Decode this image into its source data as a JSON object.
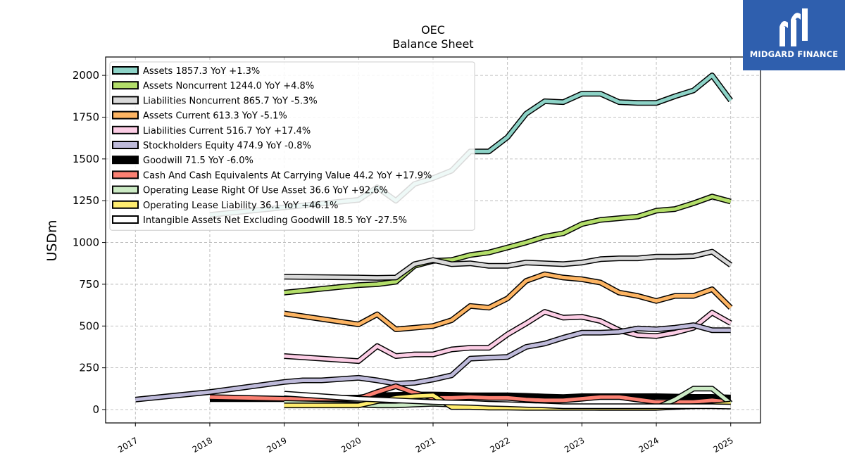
{
  "brand": {
    "name": "MIDGARD FINANCE",
    "bg_color": "#2f5fae"
  },
  "chart_data": {
    "type": "line",
    "title": "OEC",
    "subtitle": "Balance  Sheet",
    "xlabel": "",
    "ylabel": "USDm",
    "xlim": [
      2016.6,
      2025.4
    ],
    "ylim": [
      -80,
      2110
    ],
    "x_ticks": [
      "2017",
      "2018",
      "2019",
      "2020",
      "2021",
      "2022",
      "2023",
      "2024",
      "2025"
    ],
    "y_ticks": [
      "0",
      "250",
      "500",
      "750",
      "1000",
      "1250",
      "1500",
      "1750",
      "2000"
    ],
    "grid": true,
    "legend_position": "top-left",
    "series": [
      {
        "name": "Assets",
        "legend": "Assets  1857.3 YoY +1.3%",
        "color": "#8dd3c7",
        "points": [
          [
            2018,
            1165
          ],
          [
            2019,
            1210
          ],
          [
            2020,
            1255
          ],
          [
            2020.25,
            1330
          ],
          [
            2020.5,
            1250
          ],
          [
            2020.75,
            1350
          ],
          [
            2021,
            1385
          ],
          [
            2021.25,
            1430
          ],
          [
            2021.5,
            1545
          ],
          [
            2021.75,
            1545
          ],
          [
            2022,
            1630
          ],
          [
            2022.25,
            1770
          ],
          [
            2022.5,
            1845
          ],
          [
            2022.75,
            1840
          ],
          [
            2023,
            1890
          ],
          [
            2023.25,
            1890
          ],
          [
            2023.5,
            1840
          ],
          [
            2023.75,
            1835
          ],
          [
            2024,
            1835
          ],
          [
            2024.25,
            1875
          ],
          [
            2024.5,
            1910
          ],
          [
            2024.75,
            2000
          ],
          [
            2025,
            1850
          ]
        ]
      },
      {
        "name": "Assets Noncurrent",
        "legend": "Assets Noncurrent  1244.0 YoY +4.8%",
        "color": "#b3de69",
        "points": [
          [
            2019,
            700
          ],
          [
            2020,
            745
          ],
          [
            2020.25,
            750
          ],
          [
            2020.5,
            765
          ],
          [
            2020.75,
            860
          ],
          [
            2021,
            890
          ],
          [
            2021.25,
            895
          ],
          [
            2021.5,
            925
          ],
          [
            2021.75,
            940
          ],
          [
            2022,
            970
          ],
          [
            2022.25,
            1000
          ],
          [
            2022.5,
            1035
          ],
          [
            2022.75,
            1055
          ],
          [
            2023,
            1110
          ],
          [
            2023.25,
            1135
          ],
          [
            2023.5,
            1145
          ],
          [
            2023.75,
            1155
          ],
          [
            2024,
            1190
          ],
          [
            2024.25,
            1200
          ],
          [
            2024.5,
            1235
          ],
          [
            2024.75,
            1275
          ],
          [
            2025,
            1245
          ]
        ]
      },
      {
        "name": "Liabilities Noncurrent",
        "legend": "Liabilities Noncurrent  865.7 YoY -5.3%",
        "color": "#d9d9d9",
        "points": [
          [
            2019,
            795
          ],
          [
            2020,
            790
          ],
          [
            2020.25,
            788
          ],
          [
            2020.5,
            790
          ],
          [
            2020.75,
            870
          ],
          [
            2021,
            895
          ],
          [
            2021.25,
            870
          ],
          [
            2021.5,
            875
          ],
          [
            2021.75,
            860
          ],
          [
            2022,
            860
          ],
          [
            2022.25,
            880
          ],
          [
            2022.5,
            875
          ],
          [
            2022.75,
            870
          ],
          [
            2023,
            880
          ],
          [
            2023.25,
            900
          ],
          [
            2023.5,
            905
          ],
          [
            2023.75,
            905
          ],
          [
            2024,
            915
          ],
          [
            2024.25,
            915
          ],
          [
            2024.5,
            918
          ],
          [
            2024.75,
            945
          ],
          [
            2025,
            865
          ]
        ]
      },
      {
        "name": "Assets Current",
        "legend": "Assets Current  613.3 YoY -5.1%",
        "color": "#fdb462",
        "points": [
          [
            2019,
            575
          ],
          [
            2020,
            510
          ],
          [
            2020.25,
            570
          ],
          [
            2020.5,
            480
          ],
          [
            2020.75,
            490
          ],
          [
            2021,
            500
          ],
          [
            2021.25,
            535
          ],
          [
            2021.5,
            620
          ],
          [
            2021.75,
            610
          ],
          [
            2022,
            665
          ],
          [
            2022.25,
            770
          ],
          [
            2022.5,
            810
          ],
          [
            2022.75,
            790
          ],
          [
            2023,
            780
          ],
          [
            2023.25,
            760
          ],
          [
            2023.5,
            700
          ],
          [
            2023.75,
            680
          ],
          [
            2024,
            650
          ],
          [
            2024.25,
            680
          ],
          [
            2024.5,
            680
          ],
          [
            2024.75,
            720
          ],
          [
            2025,
            610
          ]
        ]
      },
      {
        "name": "Liabilities Current",
        "legend": "Liabilities Current  516.7 YoY +17.4%",
        "color": "#fccde5",
        "points": [
          [
            2019,
            320
          ],
          [
            2020,
            290
          ],
          [
            2020.25,
            380
          ],
          [
            2020.5,
            320
          ],
          [
            2020.75,
            330
          ],
          [
            2021,
            330
          ],
          [
            2021.25,
            360
          ],
          [
            2021.5,
            370
          ],
          [
            2021.75,
            370
          ],
          [
            2022,
            450
          ],
          [
            2022.25,
            515
          ],
          [
            2022.5,
            585
          ],
          [
            2022.75,
            550
          ],
          [
            2023,
            555
          ],
          [
            2023.25,
            530
          ],
          [
            2023.5,
            475
          ],
          [
            2023.75,
            445
          ],
          [
            2024,
            440
          ],
          [
            2024.25,
            460
          ],
          [
            2024.5,
            490
          ],
          [
            2024.75,
            580
          ],
          [
            2025,
            517
          ]
        ]
      },
      {
        "name": "Stockholders Equity",
        "legend": "Stockholders Equity  474.9 YoY -0.8%",
        "color": "#bebada",
        "points": [
          [
            2017,
            60
          ],
          [
            2018,
            105
          ],
          [
            2019,
            165
          ],
          [
            2019.25,
            175
          ],
          [
            2019.5,
            175
          ],
          [
            2020,
            190
          ],
          [
            2020.25,
            175
          ],
          [
            2020.5,
            155
          ],
          [
            2020.75,
            160
          ],
          [
            2021,
            180
          ],
          [
            2021.25,
            205
          ],
          [
            2021.5,
            305
          ],
          [
            2021.75,
            310
          ],
          [
            2022,
            315
          ],
          [
            2022.25,
            375
          ],
          [
            2022.5,
            395
          ],
          [
            2022.75,
            430
          ],
          [
            2023,
            460
          ],
          [
            2023.25,
            460
          ],
          [
            2023.5,
            465
          ],
          [
            2023.75,
            485
          ],
          [
            2024,
            480
          ],
          [
            2024.25,
            490
          ],
          [
            2024.5,
            505
          ],
          [
            2024.75,
            475
          ],
          [
            2025,
            475
          ]
        ]
      },
      {
        "name": "Goodwill",
        "legend": "Goodwill  71.5 YoY -6.0%",
        "color": "#000000",
        "points": [
          [
            2018,
            62
          ],
          [
            2019,
            62
          ],
          [
            2020,
            72
          ],
          [
            2020.25,
            85
          ],
          [
            2020.5,
            88
          ],
          [
            2020.75,
            90
          ],
          [
            2021,
            90
          ],
          [
            2021.25,
            88
          ],
          [
            2021.5,
            85
          ],
          [
            2021.75,
            85
          ],
          [
            2022,
            85
          ],
          [
            2022.25,
            82
          ],
          [
            2022.5,
            78
          ],
          [
            2022.75,
            75
          ],
          [
            2023,
            80
          ],
          [
            2023.25,
            80
          ],
          [
            2023.5,
            80
          ],
          [
            2023.75,
            80
          ],
          [
            2024,
            80
          ],
          [
            2024.25,
            78
          ],
          [
            2024.5,
            76
          ],
          [
            2024.75,
            76
          ],
          [
            2025,
            72
          ]
        ]
      },
      {
        "name": "Cash And Cash Equivalents At Carrying Value",
        "legend": "Cash And Cash Equivalents At Carrying Value  44.2 YoY +17.9%",
        "color": "#fb8072",
        "points": [
          [
            2018,
            75
          ],
          [
            2019,
            65
          ],
          [
            2020,
            65
          ],
          [
            2020.25,
            105
          ],
          [
            2020.5,
            140
          ],
          [
            2020.75,
            100
          ],
          [
            2021,
            70
          ],
          [
            2021.25,
            70
          ],
          [
            2021.5,
            75
          ],
          [
            2021.75,
            70
          ],
          [
            2022,
            70
          ],
          [
            2022.25,
            60
          ],
          [
            2022.5,
            55
          ],
          [
            2022.75,
            55
          ],
          [
            2023,
            65
          ],
          [
            2023.25,
            75
          ],
          [
            2023.5,
            75
          ],
          [
            2023.75,
            60
          ],
          [
            2024,
            45
          ],
          [
            2024.25,
            45
          ],
          [
            2024.5,
            45
          ],
          [
            2024.75,
            55
          ],
          [
            2025,
            44
          ]
        ]
      },
      {
        "name": "Operating Lease Right Of Use Asset",
        "legend": "Operating Lease Right Of Use Asset  36.6 YoY +92.6%",
        "color": "#ccebc5",
        "points": [
          [
            2019,
            40
          ],
          [
            2020,
            30
          ],
          [
            2020.25,
            25
          ],
          [
            2020.5,
            25
          ],
          [
            2020.75,
            30
          ],
          [
            2021,
            35
          ],
          [
            2021.25,
            30
          ],
          [
            2021.5,
            28
          ],
          [
            2021.75,
            25
          ],
          [
            2022,
            22
          ],
          [
            2022.25,
            20
          ],
          [
            2022.5,
            18
          ],
          [
            2022.75,
            15
          ],
          [
            2023,
            12
          ],
          [
            2023.25,
            10
          ],
          [
            2023.5,
            10
          ],
          [
            2023.75,
            10
          ],
          [
            2024,
            10
          ],
          [
            2024.25,
            60
          ],
          [
            2024.5,
            125
          ],
          [
            2024.75,
            125
          ],
          [
            2025,
            37
          ]
        ]
      },
      {
        "name": "Operating Lease Liability",
        "legend": "Operating Lease Liability  36.1 YoY +46.1%",
        "color": "#ffed6f",
        "points": [
          [
            2019,
            25
          ],
          [
            2020,
            25
          ],
          [
            2020.25,
            50
          ],
          [
            2020.5,
            70
          ],
          [
            2020.75,
            80
          ],
          [
            2021,
            85
          ],
          [
            2021.25,
            15
          ],
          [
            2021.5,
            15
          ],
          [
            2021.75,
            12
          ],
          [
            2022,
            12
          ],
          [
            2022.25,
            10
          ],
          [
            2022.5,
            10
          ],
          [
            2022.75,
            10
          ],
          [
            2023,
            10
          ],
          [
            2023.25,
            10
          ],
          [
            2023.5,
            10
          ],
          [
            2023.75,
            10
          ],
          [
            2024,
            10
          ],
          [
            2024.25,
            15
          ],
          [
            2024.5,
            20
          ],
          [
            2024.75,
            25
          ],
          [
            2025,
            36
          ]
        ]
      },
      {
        "name": "Intangible Assets Net Excluding Goodwill",
        "legend": "Intangible Assets Net Excluding Goodwill  18.5 YoY -27.5%",
        "color": "#ffffff",
        "points": [
          [
            2019,
            95
          ],
          [
            2020,
            65
          ],
          [
            2020.25,
            60
          ],
          [
            2020.5,
            55
          ],
          [
            2020.75,
            50
          ],
          [
            2021,
            45
          ],
          [
            2021.25,
            42
          ],
          [
            2021.5,
            40
          ],
          [
            2021.75,
            35
          ],
          [
            2022,
            32
          ],
          [
            2022.25,
            28
          ],
          [
            2022.5,
            25
          ],
          [
            2022.75,
            20
          ],
          [
            2023,
            20
          ],
          [
            2023.25,
            20
          ],
          [
            2023.5,
            20
          ],
          [
            2023.75,
            20
          ],
          [
            2024,
            20
          ],
          [
            2024.25,
            20
          ],
          [
            2024.5,
            20
          ],
          [
            2024.75,
            20
          ],
          [
            2025,
            18
          ]
        ]
      }
    ]
  }
}
